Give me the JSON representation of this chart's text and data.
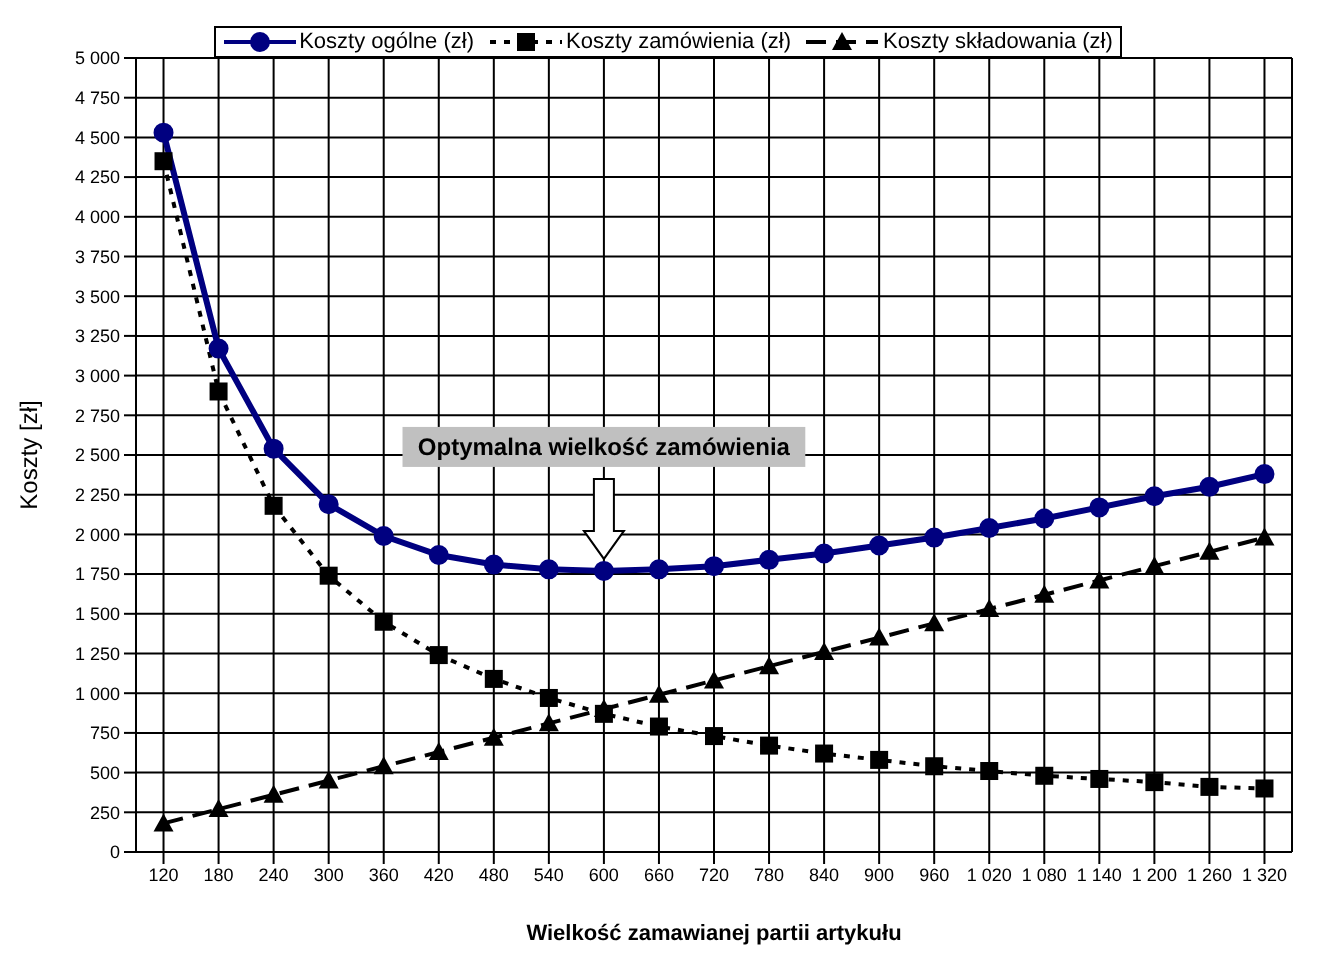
{
  "chart_data": {
    "type": "line",
    "xlabel": "Wielkość zamawianej partii artykułu",
    "ylabel": "Koszty [zł]",
    "categories": [
      "120",
      "180",
      "240",
      "300",
      "360",
      "420",
      "480",
      "540",
      "600",
      "660",
      "720",
      "780",
      "840",
      "900",
      "960",
      "1 020",
      "1 080",
      "1 140",
      "1 200",
      "1 260",
      "1 320"
    ],
    "series": [
      {
        "name": "Koszty ogólne (zł)",
        "color": "#000080",
        "marker": "circle",
        "line_style": "solid",
        "values": [
          4530,
          3170,
          2540,
          2190,
          1990,
          1870,
          1810,
          1780,
          1770,
          1780,
          1800,
          1840,
          1880,
          1930,
          1980,
          2040,
          2100,
          2170,
          2240,
          2300,
          2380
        ]
      },
      {
        "name": "Koszty zamówienia (zł)",
        "color": "#000000",
        "marker": "square",
        "line_style": "dotted",
        "values": [
          4350,
          2900,
          2180,
          1740,
          1450,
          1240,
          1090,
          970,
          870,
          790,
          730,
          670,
          620,
          580,
          540,
          510,
          480,
          460,
          440,
          410,
          400
        ]
      },
      {
        "name": "Koszty składowania (zł)",
        "color": "#000000",
        "marker": "triangle",
        "line_style": "dashed",
        "values": [
          180,
          270,
          360,
          450,
          540,
          630,
          720,
          810,
          900,
          990,
          1080,
          1170,
          1260,
          1350,
          1440,
          1530,
          1620,
          1710,
          1800,
          1890,
          1980
        ]
      }
    ],
    "ylim": [
      0,
      5000
    ],
    "yticks": [
      0,
      {
        "value": 250,
        "label": "250"
      },
      {
        "value": 500,
        "label": "500"
      },
      {
        "value": 750,
        "label": "750"
      },
      {
        "value": 1000,
        "label": "1 000"
      },
      {
        "value": 1250,
        "label": "1 250"
      },
      {
        "value": 1500,
        "label": "1 500"
      },
      {
        "value": 1750,
        "label": "1 750"
      },
      {
        "value": 2000,
        "label": "2 000"
      },
      {
        "value": 2250,
        "label": "2 250"
      },
      {
        "value": 2500,
        "label": "2 500"
      },
      {
        "value": 2750,
        "label": "2 750"
      },
      {
        "value": 3000,
        "label": "3 000"
      },
      {
        "value": 3250,
        "label": "3 250"
      },
      {
        "value": 3500,
        "label": "3 500"
      },
      {
        "value": 3750,
        "label": "3 750"
      },
      {
        "value": 4000,
        "label": "4 000"
      },
      {
        "value": 4250,
        "label": "4 250"
      },
      {
        "value": 4500,
        "label": "4 500"
      },
      {
        "value": 4750,
        "label": "4 750"
      },
      {
        "value": 5000,
        "label": "5 000"
      }
    ],
    "grid": true,
    "legend": "top",
    "annotations": [
      "Optymalna wielkość zamówienia"
    ]
  }
}
